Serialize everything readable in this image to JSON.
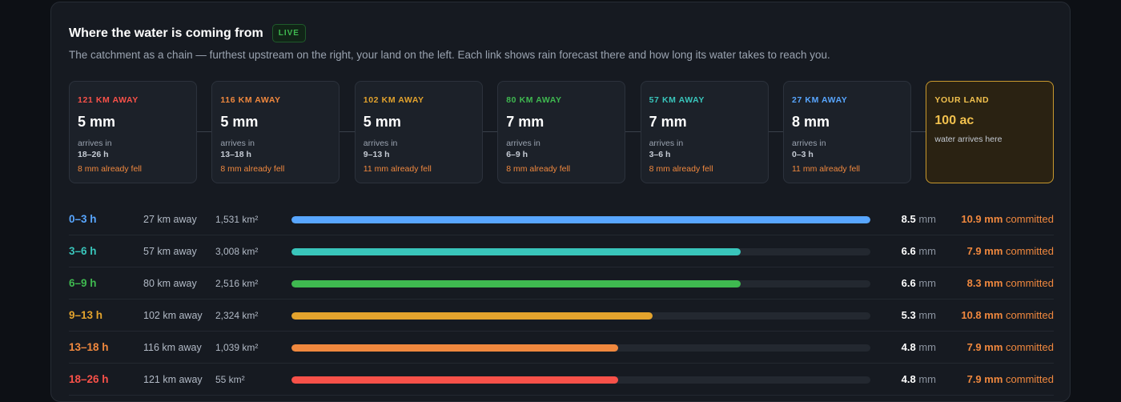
{
  "header": {
    "title": "Where the water is coming from",
    "badge": "LIVE",
    "subtitle": "The catchment as a chain — furthest upstream on the right, your land on the left. Each link shows rain forecast there and how long its water takes to reach you."
  },
  "chain": [
    {
      "distance": "121 KM AWAY",
      "rain": "5 mm",
      "arrives_label": "arrives in",
      "arrives": "18–26 h",
      "fell": "8 mm already fell",
      "color": "#f85149"
    },
    {
      "distance": "116 KM AWAY",
      "rain": "5 mm",
      "arrives_label": "arrives in",
      "arrives": "13–18 h",
      "fell": "8 mm already fell",
      "color": "#f0883e"
    },
    {
      "distance": "102 KM AWAY",
      "rain": "5 mm",
      "arrives_label": "arrives in",
      "arrives": "9–13 h",
      "fell": "11 mm already fell",
      "color": "#e3a32d"
    },
    {
      "distance": "80 KM AWAY",
      "rain": "7 mm",
      "arrives_label": "arrives in",
      "arrives": "6–9 h",
      "fell": "8 mm already fell",
      "color": "#3fb950"
    },
    {
      "distance": "57 KM AWAY",
      "rain": "7 mm",
      "arrives_label": "arrives in",
      "arrives": "3–6 h",
      "fell": "8 mm already fell",
      "color": "#39c5bb"
    },
    {
      "distance": "27 KM AWAY",
      "rain": "8 mm",
      "arrives_label": "arrives in",
      "arrives": "0–3 h",
      "fell": "11 mm already fell",
      "color": "#58a6ff"
    }
  ],
  "land": {
    "label": "YOUR LAND",
    "value": "100 ac",
    "sub": "water arrives here"
  },
  "rows": [
    {
      "range": "0–3 h",
      "away": "27 km away",
      "area": "1,531 km²",
      "rain": "8.5",
      "unit": "mm",
      "committed": "10.9 mm",
      "committed_label": "committed",
      "fraction": 1.0,
      "color": "#58a6ff"
    },
    {
      "range": "3–6 h",
      "away": "57 km away",
      "area": "3,008 km²",
      "rain": "6.6",
      "unit": "mm",
      "committed": "7.9 mm",
      "committed_label": "committed",
      "fraction": 0.776,
      "color": "#39c5bb"
    },
    {
      "range": "6–9 h",
      "away": "80 km away",
      "area": "2,516 km²",
      "rain": "6.6",
      "unit": "mm",
      "committed": "8.3 mm",
      "committed_label": "committed",
      "fraction": 0.776,
      "color": "#3fb950"
    },
    {
      "range": "9–13 h",
      "away": "102 km away",
      "area": "2,324 km²",
      "rain": "5.3",
      "unit": "mm",
      "committed": "10.8 mm",
      "committed_label": "committed",
      "fraction": 0.624,
      "color": "#e3a32d"
    },
    {
      "range": "13–18 h",
      "away": "116 km away",
      "area": "1,039 km²",
      "rain": "4.8",
      "unit": "mm",
      "committed": "7.9 mm",
      "committed_label": "committed",
      "fraction": 0.565,
      "color": "#f0883e"
    },
    {
      "range": "18–26 h",
      "away": "121 km away",
      "area": "55 km²",
      "rain": "4.8",
      "unit": "mm",
      "committed": "7.9 mm",
      "committed_label": "committed",
      "fraction": 0.565,
      "color": "#f85149"
    }
  ]
}
